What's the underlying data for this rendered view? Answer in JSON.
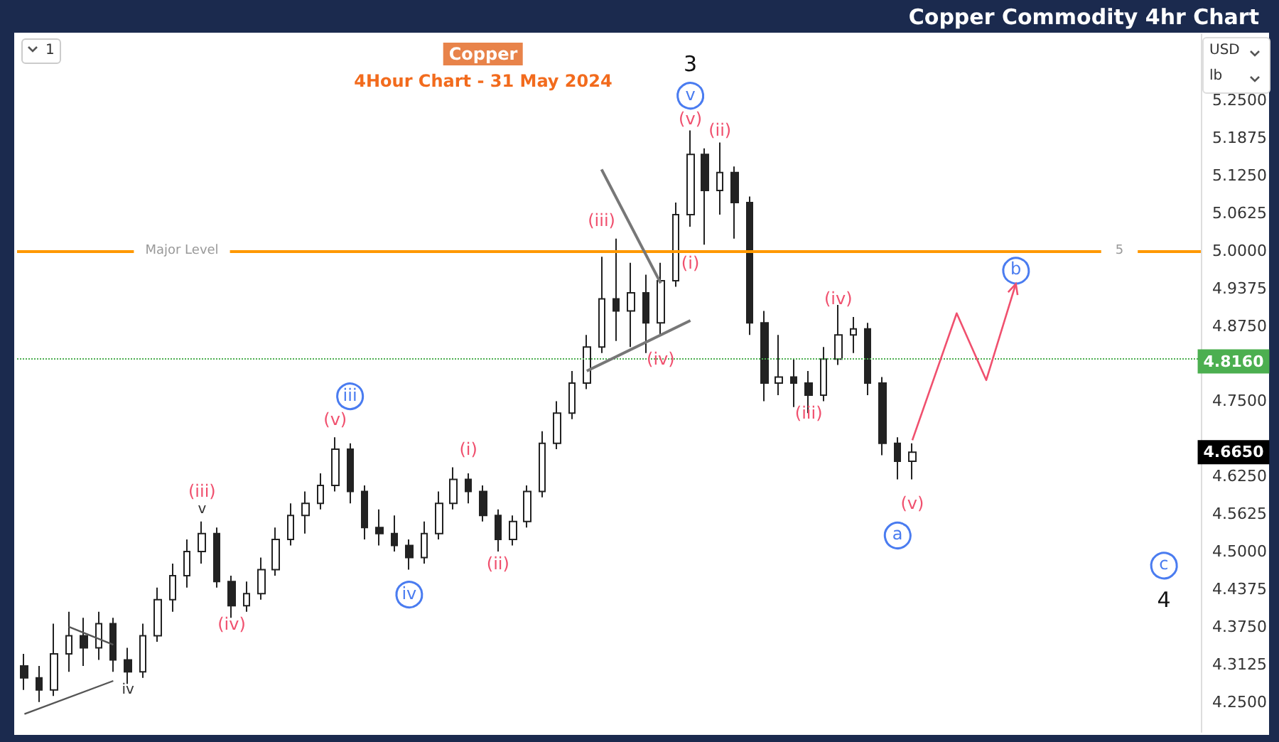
{
  "chart_data": {
    "type": "candlestick",
    "title": "Copper Commodity 4hr Chart",
    "subtitle": "4Hour Chart - 31 May 2024",
    "categories": [
      null,
      null,
      null,
      null,
      null,
      null,
      null,
      null,
      null,
      null,
      null,
      null,
      null,
      null,
      null,
      null,
      null,
      null,
      null,
      null,
      null,
      null,
      null,
      null,
      null,
      null,
      null,
      null,
      null,
      null,
      null,
      null,
      null,
      null,
      null,
      null,
      null,
      null,
      null,
      null,
      null,
      null,
      null,
      null,
      null,
      null,
      null,
      null,
      null,
      null,
      null,
      null,
      null,
      null,
      null,
      null,
      null,
      null,
      null,
      null,
      null,
      null,
      null,
      null,
      null,
      null,
      null,
      null,
      null,
      null,
      null,
      null,
      null,
      null,
      null,
      null,
      null,
      null,
      null,
      null
    ],
    "color": "#222222",
    "ohlc": [
      [
        4.31,
        4.33,
        4.27,
        4.29
      ],
      [
        4.29,
        4.31,
        4.25,
        4.27
      ],
      [
        4.27,
        4.38,
        4.26,
        4.33
      ],
      [
        4.33,
        4.4,
        4.3,
        4.36
      ],
      [
        4.36,
        4.39,
        4.31,
        4.34
      ],
      [
        4.34,
        4.4,
        4.32,
        4.38
      ],
      [
        4.38,
        4.39,
        4.3,
        4.32
      ],
      [
        4.32,
        4.34,
        4.28,
        4.3
      ],
      [
        4.3,
        4.38,
        4.29,
        4.36
      ],
      [
        4.36,
        4.44,
        4.35,
        4.42
      ],
      [
        4.42,
        4.48,
        4.4,
        4.46
      ],
      [
        4.46,
        4.52,
        4.44,
        4.5
      ],
      [
        4.5,
        4.55,
        4.48,
        4.53
      ],
      [
        4.53,
        4.54,
        4.44,
        4.45
      ],
      [
        4.45,
        4.46,
        4.39,
        4.41
      ],
      [
        4.41,
        4.45,
        4.4,
        4.43
      ],
      [
        4.43,
        4.49,
        4.42,
        4.47
      ],
      [
        4.47,
        4.54,
        4.46,
        4.52
      ],
      [
        4.52,
        4.58,
        4.51,
        4.56
      ],
      [
        4.56,
        4.6,
        4.53,
        4.58
      ],
      [
        4.58,
        4.63,
        4.57,
        4.61
      ],
      [
        4.61,
        4.69,
        4.6,
        4.67
      ],
      [
        4.67,
        4.68,
        4.58,
        4.6
      ],
      [
        4.6,
        4.61,
        4.52,
        4.54
      ],
      [
        4.54,
        4.57,
        4.51,
        4.53
      ],
      [
        4.53,
        4.56,
        4.5,
        4.51
      ],
      [
        4.51,
        4.52,
        4.47,
        4.49
      ],
      [
        4.49,
        4.55,
        4.48,
        4.53
      ],
      [
        4.53,
        4.6,
        4.52,
        4.58
      ],
      [
        4.58,
        4.64,
        4.57,
        4.62
      ],
      [
        4.62,
        4.63,
        4.58,
        4.6
      ],
      [
        4.6,
        4.61,
        4.55,
        4.56
      ],
      [
        4.56,
        4.57,
        4.5,
        4.52
      ],
      [
        4.52,
        4.56,
        4.51,
        4.55
      ],
      [
        4.55,
        4.61,
        4.54,
        4.6
      ],
      [
        4.6,
        4.7,
        4.59,
        4.68
      ],
      [
        4.68,
        4.75,
        4.67,
        4.73
      ],
      [
        4.73,
        4.8,
        4.72,
        4.78
      ],
      [
        4.78,
        4.86,
        4.77,
        4.84
      ],
      [
        4.84,
        4.99,
        4.83,
        4.92
      ],
      [
        4.92,
        5.02,
        4.85,
        4.9
      ],
      [
        4.9,
        4.98,
        4.84,
        4.93
      ],
      [
        4.93,
        4.96,
        4.83,
        4.88
      ],
      [
        4.88,
        4.98,
        4.86,
        4.95
      ],
      [
        4.95,
        5.08,
        4.94,
        5.06
      ],
      [
        5.06,
        5.2,
        5.04,
        5.16
      ],
      [
        5.16,
        5.17,
        5.01,
        5.1
      ],
      [
        5.1,
        5.18,
        5.06,
        5.13
      ],
      [
        5.13,
        5.14,
        5.02,
        5.08
      ],
      [
        5.08,
        5.09,
        4.86,
        4.88
      ],
      [
        4.88,
        4.9,
        4.75,
        4.78
      ],
      [
        4.78,
        4.86,
        4.76,
        4.79
      ],
      [
        4.79,
        4.82,
        4.74,
        4.78
      ],
      [
        4.78,
        4.8,
        4.73,
        4.76
      ],
      [
        4.76,
        4.84,
        4.75,
        4.82
      ],
      [
        4.82,
        4.91,
        4.81,
        4.86
      ],
      [
        4.86,
        4.89,
        4.83,
        4.87
      ],
      [
        4.87,
        4.88,
        4.76,
        4.78
      ],
      [
        4.78,
        4.79,
        4.66,
        4.68
      ],
      [
        4.68,
        4.69,
        4.62,
        4.65
      ],
      [
        4.65,
        4.68,
        4.62,
        4.665
      ],
      null,
      null,
      null,
      null,
      null,
      null,
      null,
      null,
      null,
      null,
      null,
      null,
      null,
      null,
      null,
      null,
      null,
      null,
      null
    ],
    "ylim": [
      4.2,
      5.36
    ],
    "yticks": [
      {
        "value": 4.25,
        "label": "4.2500"
      },
      {
        "value": 4.3125,
        "label": "4.3125"
      },
      {
        "value": 4.375,
        "label": "4.3750"
      },
      {
        "value": 4.4375,
        "label": "4.4375"
      },
      {
        "value": 4.5,
        "label": "4.5000"
      },
      {
        "value": 4.5625,
        "label": "4.5625"
      },
      {
        "value": 4.625,
        "label": "4.6250"
      },
      {
        "value": 4.75,
        "label": "4.7500"
      },
      {
        "value": 4.875,
        "label": "4.8750"
      },
      {
        "value": 4.9375,
        "label": "4.9375"
      },
      {
        "value": 5,
        "label": "5.0000"
      },
      {
        "value": 5.0625,
        "label": "5.0625"
      },
      {
        "value": 5.125,
        "label": "5.1250"
      },
      {
        "value": 5.1875,
        "label": "5.1875"
      },
      {
        "value": 5.25,
        "label": "5.2500"
      }
    ],
    "tick_labels": "y",
    "grid": false,
    "ref_lines": [
      {
        "axis": "y",
        "value": 5,
        "label": "Major Level",
        "color": "#ff9800",
        "line_style": "solid"
      },
      {
        "axis": "y",
        "value": 4.816,
        "label": "4.8160",
        "color": "#4caf50",
        "line_style": "dotted"
      }
    ],
    "annotations": [
      "Copper",
      "USD",
      "lb",
      "1",
      {
        "text": "5",
        "y": 5
      },
      "4.6650",
      "3",
      "v",
      "(v)",
      "(ii)",
      "(iii)",
      "(i)",
      "(iv)",
      "(iv)",
      "(iii)",
      "(v)",
      "a",
      "b",
      "c",
      "4",
      "iii",
      "(v)",
      "(iii)",
      "v",
      "(iv)",
      "iv",
      "(i)",
      "(ii)",
      "iv"
    ]
  }
}
